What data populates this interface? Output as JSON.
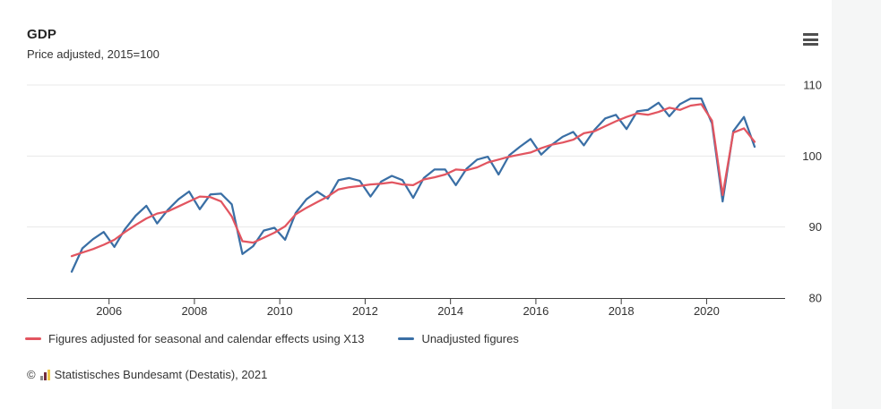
{
  "header": {
    "title": "GDP",
    "subtitle": "Price adjusted, 2015=100"
  },
  "menu": {
    "icon": "hamburger-menu-icon",
    "purpose": "chart context menu"
  },
  "chart_data": {
    "type": "line",
    "title": "GDP",
    "subtitle": "Price adjusted, 2015=100",
    "x": {
      "frequency": "quarterly",
      "start": "2005-Q1",
      "end": "2021-Q1",
      "points": 65
    },
    "x_ticks": [
      "2006",
      "2008",
      "2010",
      "2012",
      "2014",
      "2016",
      "2018",
      "2020"
    ],
    "y_ticks": [
      "80",
      "90",
      "100",
      "110"
    ],
    "ylim": [
      80,
      110
    ],
    "grid": "horizontal",
    "legend_position": "bottom-left",
    "series": [
      {
        "name": "Figures adjusted for seasonal and calendar effects using X13",
        "color": "#e25560",
        "values": [
          85.9,
          86.4,
          86.9,
          87.5,
          88.2,
          89.3,
          90.3,
          91.2,
          91.9,
          92.2,
          92.9,
          93.6,
          94.3,
          94.2,
          93.6,
          91.5,
          88.0,
          87.8,
          88.5,
          89.2,
          90.1,
          91.8,
          92.7,
          93.5,
          94.3,
          95.3,
          95.6,
          95.8,
          96.0,
          96.1,
          96.3,
          96.0,
          95.9,
          96.7,
          97.0,
          97.4,
          98.1,
          98.0,
          98.4,
          99.1,
          99.5,
          99.9,
          100.2,
          100.5,
          101.1,
          101.6,
          101.9,
          102.3,
          103.2,
          103.5,
          104.2,
          104.9,
          105.5,
          106.0,
          105.8,
          106.2,
          106.8,
          106.5,
          107.1,
          107.3,
          105.0,
          94.5,
          103.3,
          103.9,
          102.0
        ]
      },
      {
        "name": "Unadjusted figures",
        "color": "#3a6fa5",
        "values": [
          83.7,
          87.0,
          88.3,
          89.3,
          87.2,
          89.7,
          91.6,
          93.0,
          90.5,
          92.4,
          93.9,
          95.0,
          92.5,
          94.6,
          94.7,
          93.2,
          86.2,
          87.3,
          89.5,
          89.9,
          88.2,
          92.0,
          93.9,
          95.0,
          94.0,
          96.6,
          96.9,
          96.5,
          94.3,
          96.4,
          97.2,
          96.6,
          94.1,
          96.9,
          98.1,
          98.1,
          95.9,
          98.2,
          99.5,
          99.9,
          97.4,
          100.1,
          101.3,
          102.4,
          100.2,
          101.6,
          102.7,
          103.4,
          101.5,
          103.7,
          105.3,
          105.8,
          103.8,
          106.3,
          106.5,
          107.5,
          105.6,
          107.3,
          108.1,
          108.1,
          104.6,
          93.6,
          103.5,
          105.5,
          101.3
        ]
      }
    ]
  },
  "footer": {
    "copyright": "©",
    "source": "Statistisches Bundesamt (Destatis), 2021",
    "logo_icon": "destatis-bar-chart-icon"
  },
  "colors": {
    "background": "#ffffff",
    "right_strip": "#f5f6f6",
    "grid": "#e8e8e8",
    "axis": "#3c3c3c",
    "text": "#333333",
    "adjusted_series": "#e25560",
    "unadjusted_series": "#3a6fa5"
  }
}
